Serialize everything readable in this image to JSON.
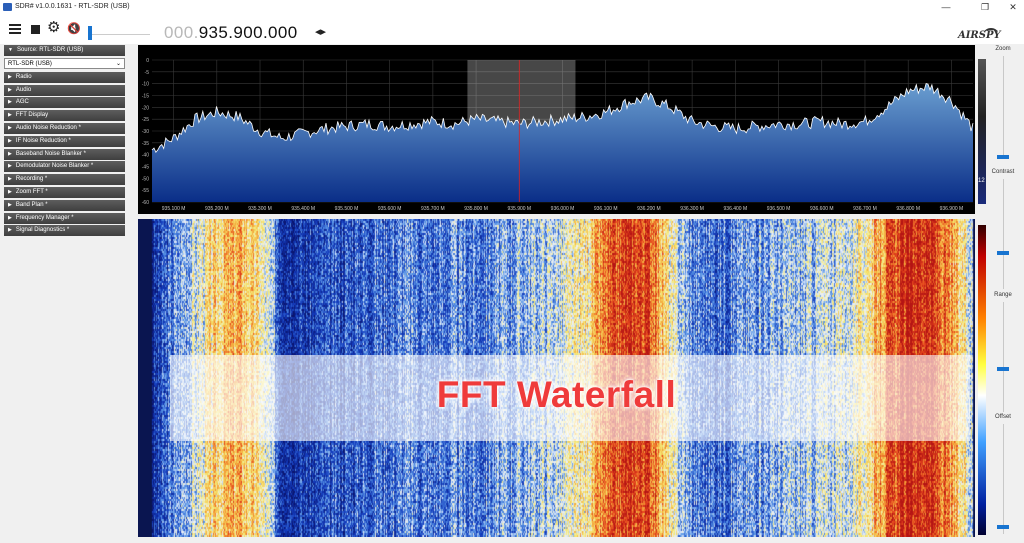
{
  "window": {
    "title": "SDR# v1.0.0.1631 - RTL-SDR (USB)",
    "minimize": "—",
    "restore": "❐",
    "close": "✕"
  },
  "toolbar": {
    "frequency_dim": "000.",
    "frequency_bright": "935.900.000",
    "freq_arrows": "◂▸",
    "gear_glyph": "⚙",
    "mute_glyph": "🔇"
  },
  "logo": {
    "text": "AIRSPY"
  },
  "sidebar": {
    "source_header": "Source: RTL-SDR (USB)",
    "source_value": "RTL-SDR (USB)",
    "panels": [
      "Radio",
      "Audio",
      "AGC",
      "FFT Display",
      "Audio Noise Reduction *",
      "IF Noise Reduction *",
      "Baseband Noise Blanker *",
      "Demodulator Noise Blanker *",
      "Recording *",
      "Zoom FFT *",
      "Band Plan *",
      "Frequency Manager *",
      "Signal Diagnostics *"
    ]
  },
  "chart_data": {
    "type": "line",
    "title": "",
    "xlabel": "",
    "ylabel": "",
    "x_ticks": [
      "935.100 M",
      "935.200 M",
      "935.300 M",
      "935.400 M",
      "935.500 M",
      "935.600 M",
      "935.700 M",
      "935.800 M",
      "935.900 M",
      "936.000 M",
      "936.100 M",
      "936.200 M",
      "936.300 M",
      "936.400 M",
      "936.500 M",
      "936.600 M",
      "936.700 M",
      "936.800 M",
      "936.900 M"
    ],
    "x_tick_values": [
      935.1,
      935.2,
      935.3,
      935.4,
      935.5,
      935.6,
      935.7,
      935.8,
      935.9,
      936.0,
      936.1,
      936.2,
      936.3,
      936.4,
      936.5,
      936.6,
      936.7,
      936.8,
      936.9
    ],
    "y_ticks": [
      "0",
      "-5",
      "-10",
      "-15",
      "-20",
      "-25",
      "-30",
      "-35",
      "-40",
      "-45",
      "-50",
      "-55",
      "-60"
    ],
    "y_tick_values": [
      0,
      -5,
      -10,
      -15,
      -20,
      -25,
      -30,
      -35,
      -40,
      -45,
      -50,
      -55,
      -60
    ],
    "xlim": [
      935.05,
      936.95
    ],
    "ylim": [
      -60,
      0
    ],
    "center_frequency": 935.9,
    "filter_band": [
      935.78,
      936.03
    ],
    "series": [
      {
        "x": [
          935.05,
          935.1,
          935.15,
          935.2,
          935.25,
          935.3,
          935.35,
          935.4,
          935.45,
          935.5,
          935.55,
          935.6,
          935.65,
          935.7,
          935.75,
          935.8,
          935.85,
          935.9,
          935.95,
          936.0,
          936.05,
          936.1,
          936.15,
          936.2,
          936.25,
          936.3,
          936.35,
          936.4,
          936.45,
          936.5,
          936.55,
          936.6,
          936.65,
          936.7,
          936.75,
          936.8,
          936.85,
          936.9,
          936.95
        ],
        "values": [
          -38,
          -33,
          -25,
          -22,
          -24,
          -30,
          -33,
          -31,
          -29,
          -28,
          -27,
          -28,
          -27,
          -26,
          -27,
          -25,
          -26,
          -27,
          -26,
          -25,
          -24,
          -22,
          -18,
          -16,
          -20,
          -26,
          -28,
          -29,
          -28,
          -27,
          -27,
          -26,
          -27,
          -26,
          -20,
          -13,
          -11,
          -17,
          -29
        ]
      }
    ],
    "waterfall_axis_ticks": [
      "935.100 M",
      "935.200 M",
      "935.300 M",
      "935.400 M",
      "935.500 M",
      "935.600 M",
      "935.700 M",
      "935.800 M",
      "935.900 M",
      "936.000 M",
      "936.100 M",
      "936.200 M",
      "936.300 M",
      "936.400 M",
      "936.500 M",
      "936.600 M",
      "936.700 M",
      "936.800 M",
      "936.900 M"
    ],
    "waterfall_intensity": [
      0.1,
      0.3,
      0.45,
      0.62,
      0.7,
      0.55,
      0.2,
      0.15,
      0.18,
      0.22,
      0.26,
      0.28,
      0.3,
      0.26,
      0.3,
      0.28,
      0.32,
      0.36,
      0.4,
      0.44,
      0.55,
      0.78,
      0.9,
      0.88,
      0.5,
      0.3,
      0.26,
      0.3,
      0.34,
      0.36,
      0.38,
      0.42,
      0.45,
      0.55,
      0.8,
      0.95,
      0.92,
      0.7,
      0.4
    ]
  },
  "right_panel": {
    "zoom_label": "Zoom",
    "contrast_label": "Contrast",
    "range_label": "Range",
    "offset_label": "Offset",
    "gain_value": "12"
  },
  "overlay": {
    "label": "FFT Waterfall"
  },
  "colors": {
    "spectrum_fill_top": "#6a9ed0",
    "spectrum_fill_bottom": "#0a2e88",
    "trace": "#ffffff",
    "center_line": "#e02020",
    "accent": "#1874d0",
    "overlay_text": "#ef3b3b"
  }
}
